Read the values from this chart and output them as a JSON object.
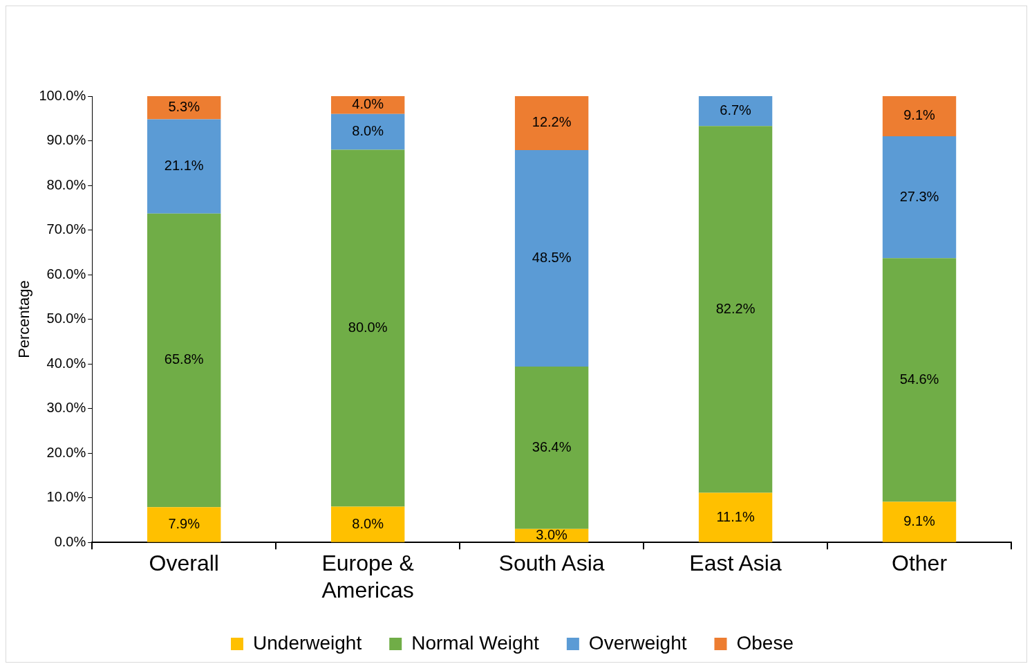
{
  "chart_data": {
    "type": "bar",
    "stacked": true,
    "ylabel": "Percentage",
    "categories": [
      "Overall",
      "Europe & Americas",
      "South Asia",
      "East Asia",
      "Other"
    ],
    "series": [
      {
        "name": "Underweight",
        "color": "#ffc000",
        "values": [
          7.9,
          8.0,
          3.0,
          11.1,
          9.1
        ],
        "value_labels": [
          "7.9%",
          "8.0%",
          "3.0%",
          "11.1%",
          "9.1%"
        ]
      },
      {
        "name": "Normal Weight",
        "color": "#70ad47",
        "values": [
          65.8,
          80.0,
          36.4,
          82.2,
          54.6
        ],
        "value_labels": [
          "65.8%",
          "80.0%",
          "36.4%",
          "82.2%",
          "54.6%"
        ]
      },
      {
        "name": "Overweight",
        "color": "#5b9bd5",
        "values": [
          21.1,
          8.0,
          48.5,
          6.7,
          27.3
        ],
        "value_labels": [
          "21.1%",
          "8.0%",
          "48.5%",
          "6.7%",
          "27.3%"
        ]
      },
      {
        "name": "Obese",
        "color": "#ed7d31",
        "values": [
          5.3,
          4.0,
          12.2,
          null,
          9.1
        ],
        "value_labels": [
          "5.3%",
          "4.0%",
          "12.2%",
          null,
          "9.1%"
        ]
      }
    ],
    "ylim": [
      0,
      100
    ],
    "yticks": [
      {
        "value": 0,
        "label": "0.0%"
      },
      {
        "value": 10,
        "label": "10.0%"
      },
      {
        "value": 20,
        "label": "20.0%"
      },
      {
        "value": 30,
        "label": "30.0%"
      },
      {
        "value": 40,
        "label": "40.0%"
      },
      {
        "value": 50,
        "label": "50.0%"
      },
      {
        "value": 60,
        "label": "60.0%"
      },
      {
        "value": 70,
        "label": "70.0%"
      },
      {
        "value": 80,
        "label": "80.0%"
      },
      {
        "value": 90,
        "label": "90.0%"
      },
      {
        "value": 100,
        "label": "100.0%"
      }
    ],
    "grid": false,
    "legend": "bottom"
  }
}
